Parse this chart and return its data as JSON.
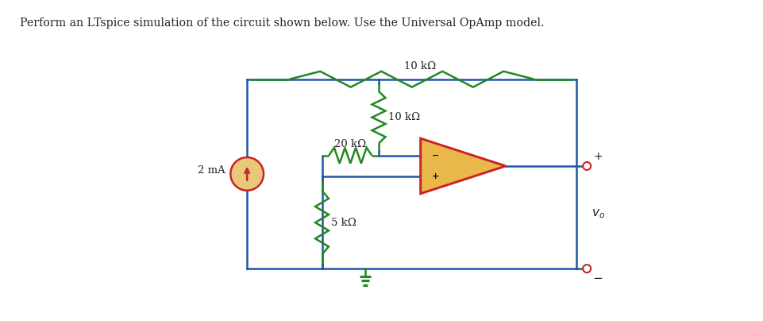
{
  "title": "Perform an LTspice simulation of the circuit shown below. Use the Universal OpAmp model.",
  "wire_color": "#2255aa",
  "resistor_color": "#228822",
  "opamp_fill": "#e8b84b",
  "opamp_border": "#cc2222",
  "current_source_fill": "#e8c87a",
  "current_source_border": "#cc2222",
  "terminal_color": "#cc2222",
  "ground_color": "#228822",
  "text_color": "#222222",
  "bg_color": "#ffffff",
  "label_feedback": "10 kΩ",
  "label_20k": "20 kΩ",
  "label_10kv": "10 kΩ",
  "label_5k": "5 kΩ",
  "label_isrc": "2 mA",
  "label_vout": "v_o"
}
